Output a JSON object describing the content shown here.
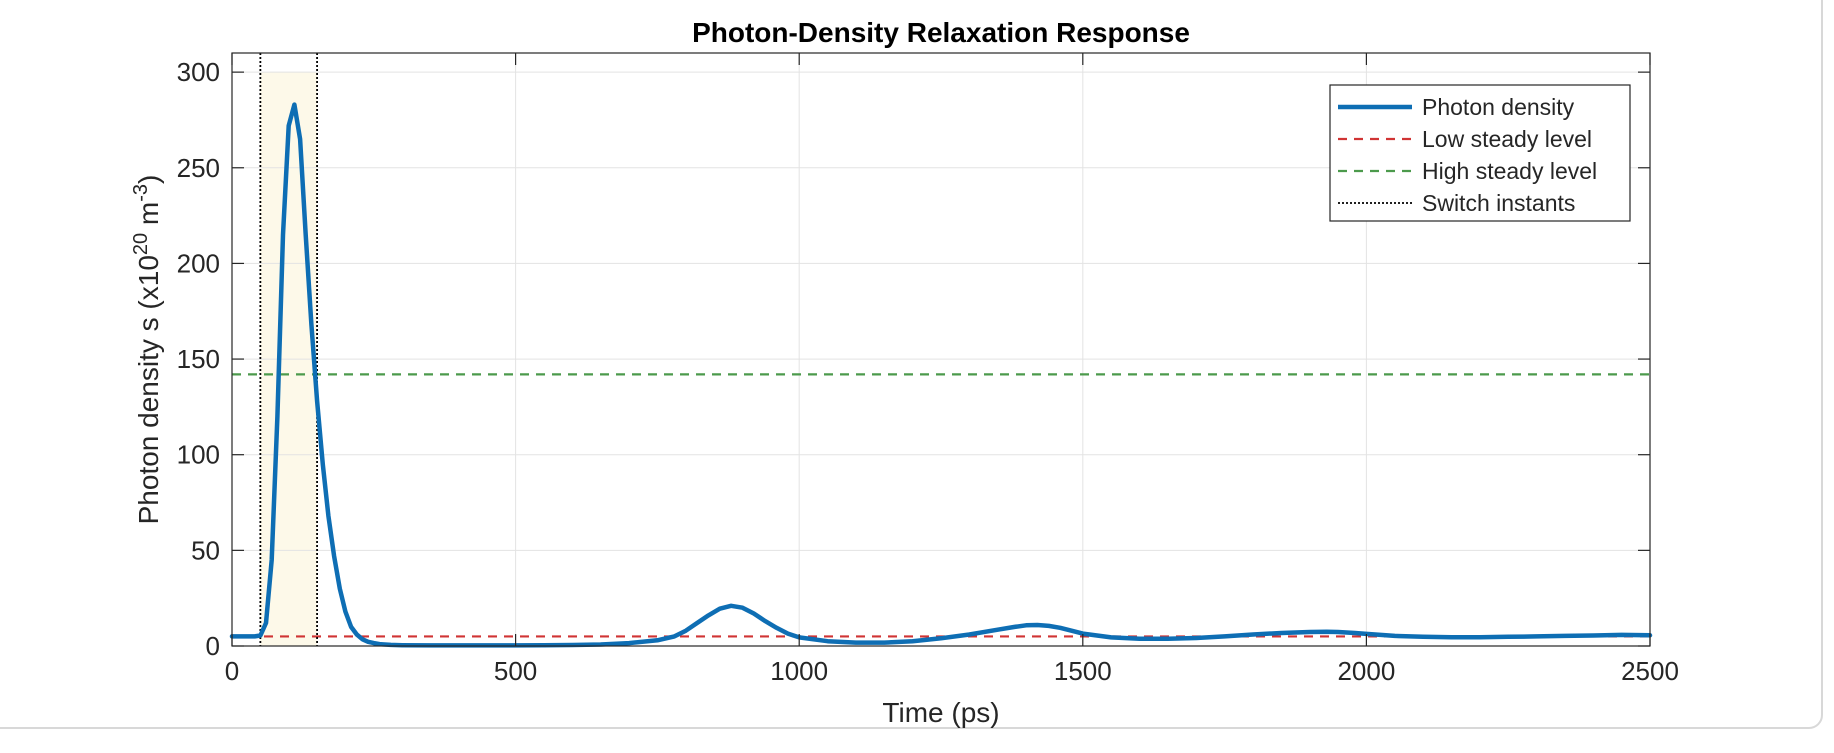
{
  "chart_data": {
    "type": "line",
    "title": "Photon-Density Relaxation Response",
    "xlabel": "Time (ps)",
    "ylabel": {
      "text": "Photon density  s (x10",
      "sup1": "20",
      "mid": " m",
      "sup2": "-3",
      "end": ")"
    },
    "xlim": [
      0,
      2500
    ],
    "ylim": [
      0,
      310
    ],
    "xticks": [
      0,
      500,
      1000,
      1500,
      2000,
      2500
    ],
    "yticks": [
      0,
      50,
      100,
      150,
      200,
      250,
      300
    ],
    "grid": true,
    "legend_position": "top-right",
    "shaded_region": {
      "x": [
        50,
        150
      ],
      "y": [
        0,
        300
      ],
      "color": "#fdf9e9"
    },
    "series": [
      {
        "name": "Photon density",
        "style": "solid",
        "color": "#0e6eb4",
        "x": [
          0,
          40,
          50,
          60,
          70,
          80,
          90,
          100,
          110,
          120,
          130,
          140,
          150,
          160,
          170,
          180,
          190,
          200,
          210,
          220,
          230,
          240,
          250,
          260,
          280,
          300,
          350,
          400,
          450,
          500,
          550,
          600,
          650,
          700,
          750,
          780,
          800,
          820,
          840,
          860,
          880,
          900,
          920,
          940,
          960,
          980,
          1000,
          1050,
          1100,
          1150,
          1200,
          1250,
          1300,
          1350,
          1380,
          1400,
          1420,
          1440,
          1460,
          1480,
          1500,
          1550,
          1600,
          1650,
          1700,
          1750,
          1800,
          1850,
          1900,
          1930,
          1950,
          1980,
          2000,
          2050,
          2100,
          2150,
          2200,
          2250,
          2300,
          2350,
          2400,
          2450,
          2500
        ],
        "y": [
          5,
          5,
          5.5,
          12,
          45,
          120,
          215,
          272,
          283,
          265,
          215,
          168,
          128,
          95,
          68,
          47,
          30,
          18,
          10,
          6,
          3.5,
          2.2,
          1.5,
          1,
          0.6,
          0.4,
          0.3,
          0.3,
          0.3,
          0.3,
          0.4,
          0.5,
          0.8,
          1.5,
          3,
          5,
          8,
          12,
          16,
          19.5,
          21,
          20,
          17,
          13,
          9.5,
          6.5,
          4.5,
          2.5,
          1.8,
          1.8,
          2.5,
          4,
          6,
          8.5,
          10,
          10.8,
          11,
          10.5,
          9.5,
          8,
          6.5,
          4.5,
          3.8,
          3.8,
          4.2,
          5,
          6,
          6.8,
          7.3,
          7.5,
          7.3,
          6.8,
          6.3,
          5.3,
          4.8,
          4.6,
          4.6,
          4.8,
          5,
          5.3,
          5.5,
          5.8,
          5.6
        ]
      },
      {
        "name": "Low steady level",
        "style": "dashed",
        "color": "#d03434",
        "y": 5
      },
      {
        "name": "High steady level",
        "style": "dashed",
        "color": "#4c9a4c",
        "y": 142
      },
      {
        "name": "Switch instants",
        "style": "dotted",
        "color": "#000000",
        "x": [
          50,
          150
        ]
      }
    ]
  }
}
